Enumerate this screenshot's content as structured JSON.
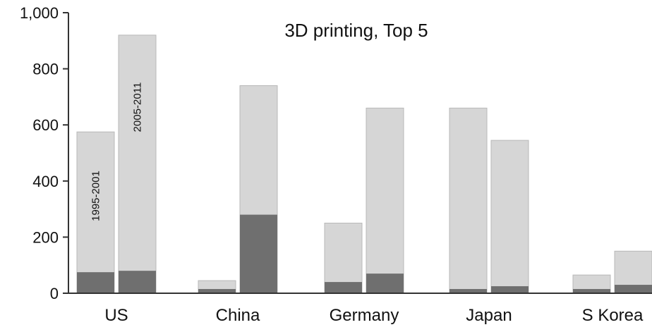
{
  "colors": {
    "light": "#d6d6d6",
    "dark": "#6f6f6f",
    "bar_stroke": "#b8b8b8",
    "axis": "#333333"
  },
  "chart_data": {
    "type": "bar",
    "title": "3D printing, Top 5",
    "categories": [
      "US",
      "China",
      "Germany",
      "Japan",
      "S Korea"
    ],
    "series_labels": [
      "1995-2001",
      "2005-2011"
    ],
    "y_ticks": [
      "0",
      "200",
      "400",
      "600",
      "800",
      "1,000"
    ],
    "y_tick_values": [
      0,
      200,
      400,
      600,
      800,
      1000
    ],
    "ylim": [
      0,
      1000
    ],
    "grid": false,
    "bars": [
      [
        {
          "total": 575,
          "dark": 75
        },
        {
          "total": 920,
          "dark": 80
        }
      ],
      [
        {
          "total": 45,
          "dark": 15
        },
        {
          "total": 740,
          "dark": 280
        }
      ],
      [
        {
          "total": 250,
          "dark": 40
        },
        {
          "total": 660,
          "dark": 70
        }
      ],
      [
        {
          "total": 660,
          "dark": 15
        },
        {
          "total": 545,
          "dark": 25
        }
      ],
      [
        {
          "total": 65,
          "dark": 15
        },
        {
          "total": 150,
          "dark": 30
        }
      ]
    ]
  }
}
